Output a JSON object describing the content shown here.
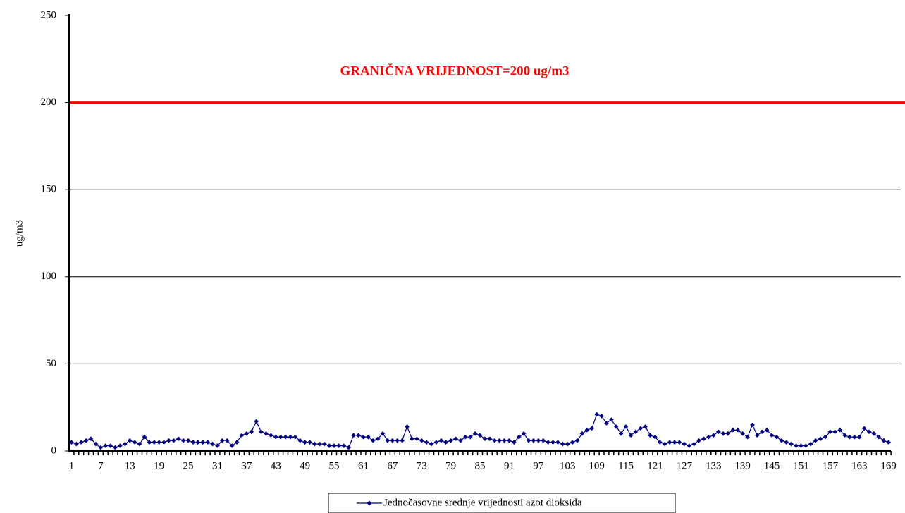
{
  "chart_data": {
    "type": "line",
    "y_label": "ug/m3",
    "categories": [
      1,
      null,
      null,
      null,
      null,
      null,
      7,
      null,
      null,
      null,
      null,
      null,
      13,
      null,
      null,
      null,
      null,
      null,
      19,
      null,
      null,
      null,
      null,
      null,
      25,
      null,
      null,
      null,
      null,
      null,
      31,
      null,
      null,
      null,
      null,
      null,
      37,
      null,
      null,
      null,
      null,
      null,
      43,
      null,
      null,
      null,
      null,
      null,
      49,
      null,
      null,
      null,
      null,
      null,
      55,
      null,
      null,
      null,
      null,
      null,
      61,
      null,
      null,
      null,
      null,
      null,
      67,
      null,
      null,
      null,
      null,
      null,
      73,
      null,
      null,
      null,
      null,
      null,
      79,
      null,
      null,
      null,
      null,
      null,
      85,
      null,
      null,
      null,
      null,
      null,
      91,
      null,
      null,
      null,
      null,
      null,
      97,
      null,
      null,
      null,
      null,
      null,
      103,
      null,
      null,
      null,
      null,
      null,
      109,
      null,
      null,
      null,
      null,
      null,
      115,
      null,
      null,
      null,
      null,
      null,
      121,
      null,
      null,
      null,
      null,
      null,
      127,
      null,
      null,
      null,
      null,
      null,
      133,
      null,
      null,
      null,
      null,
      null,
      139,
      null,
      null,
      null,
      null,
      null,
      145,
      null,
      null,
      null,
      null,
      null,
      151,
      null,
      null,
      null,
      null,
      null,
      157,
      null,
      null,
      null,
      null,
      null,
      163,
      null,
      null,
      null,
      null,
      null,
      169
    ],
    "series": [
      {
        "name": "Jednočasovne srednje vrijednosti azot dioksida",
        "color": "#000080",
        "values": [
          5,
          4,
          5,
          6,
          7,
          4,
          2,
          3,
          3,
          2,
          3,
          4,
          6,
          5,
          4,
          8,
          5,
          5,
          5,
          5,
          6,
          6,
          7,
          6,
          6,
          5,
          5,
          5,
          5,
          4,
          3,
          6,
          6,
          3,
          5,
          9,
          10,
          11,
          17,
          11,
          10,
          9,
          8,
          8,
          8,
          8,
          8,
          6,
          5,
          5,
          4,
          4,
          4,
          3,
          3,
          3,
          3,
          2,
          9,
          9,
          8,
          8,
          6,
          7,
          10,
          6,
          6,
          6,
          6,
          14,
          7,
          7,
          6,
          5,
          4,
          5,
          6,
          5,
          6,
          7,
          6,
          8,
          8,
          10,
          9,
          7,
          7,
          6,
          6,
          6,
          6,
          5,
          8,
          10,
          6,
          6,
          6,
          6,
          5,
          5,
          5,
          4,
          4,
          5,
          6,
          10,
          12,
          13,
          21,
          20,
          16,
          18,
          14,
          10,
          14,
          9,
          11,
          13,
          14,
          9,
          8,
          5,
          4,
          5,
          5,
          5,
          4,
          3,
          4,
          6,
          7,
          8,
          9,
          11,
          10,
          10,
          12,
          12,
          10,
          8,
          15,
          9,
          11,
          12,
          9,
          8,
          6,
          5,
          4,
          3,
          3,
          3,
          4,
          6,
          7,
          8,
          11,
          11,
          12,
          9,
          8,
          8,
          8,
          13,
          11,
          10,
          8,
          6,
          5
        ]
      }
    ],
    "reference_line": {
      "value": 200,
      "label": "GRANIČNA VRIJEDNOST=200 ug/m3",
      "color": "#ff0000"
    },
    "ylim": [
      0,
      250
    ],
    "yticks": [
      0,
      50,
      100,
      150,
      200,
      250
    ],
    "grid": true,
    "legend": "bottom"
  }
}
